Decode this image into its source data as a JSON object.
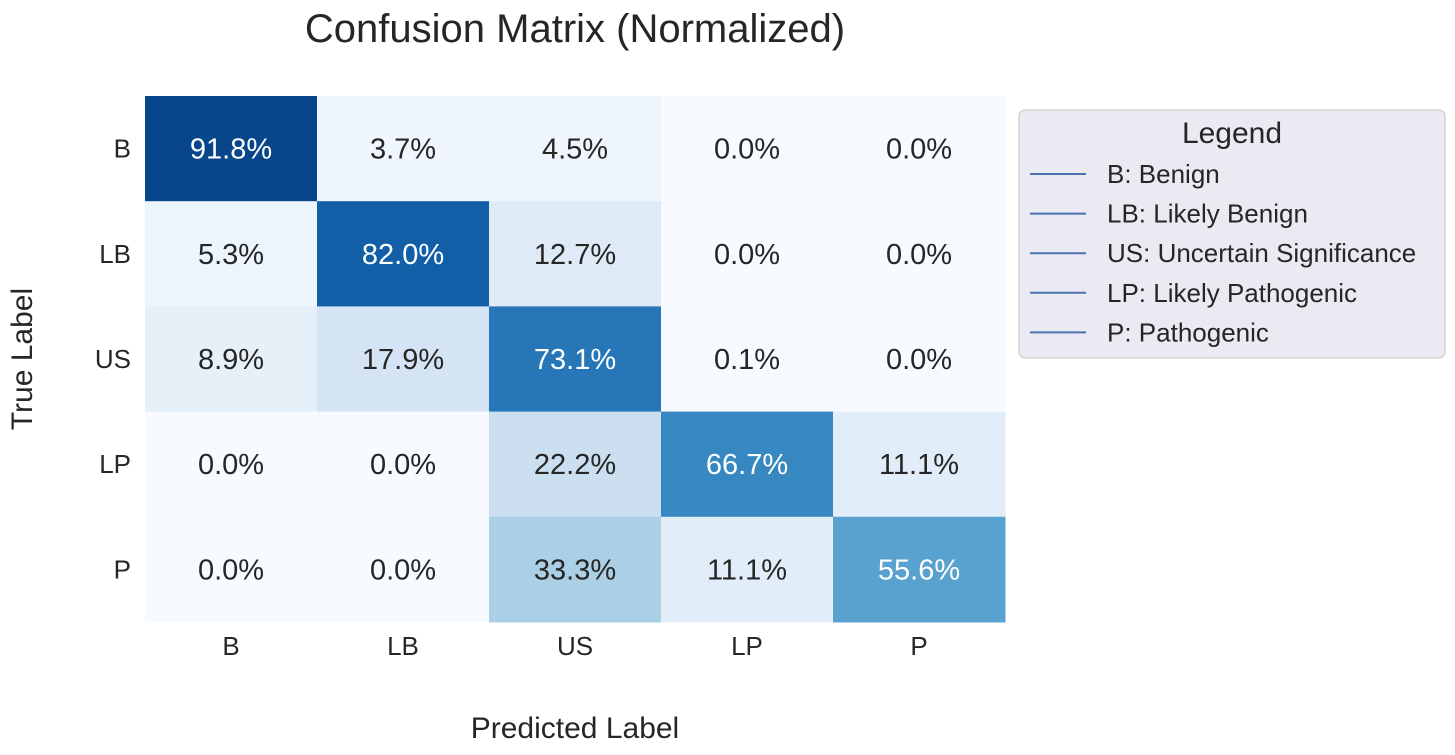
{
  "chart_data": {
    "type": "heatmap",
    "title": "Confusion Matrix (Normalized)",
    "xlabel": "Predicted Label",
    "ylabel": "True Label",
    "x_categories": [
      "B",
      "LB",
      "US",
      "LP",
      "P"
    ],
    "y_categories": [
      "B",
      "LB",
      "US",
      "LP",
      "P"
    ],
    "values": [
      [
        91.8,
        3.7,
        4.5,
        0.0,
        0.0
      ],
      [
        5.3,
        82.0,
        12.7,
        0.0,
        0.0
      ],
      [
        8.9,
        17.9,
        73.1,
        0.1,
        0.0
      ],
      [
        0.0,
        0.0,
        22.2,
        66.7,
        11.1
      ],
      [
        0.0,
        0.0,
        33.3,
        11.1,
        55.6
      ]
    ],
    "cell_labels": [
      [
        "91.8%",
        "3.7%",
        "4.5%",
        "0.0%",
        "0.0%"
      ],
      [
        "5.3%",
        "82.0%",
        "12.7%",
        "0.0%",
        "0.0%"
      ],
      [
        "8.9%",
        "17.9%",
        "73.1%",
        "0.1%",
        "0.0%"
      ],
      [
        "0.0%",
        "0.0%",
        "22.2%",
        "66.7%",
        "11.1%"
      ],
      [
        "0.0%",
        "0.0%",
        "33.3%",
        "11.1%",
        "55.6%"
      ]
    ],
    "value_range": [
      0,
      100
    ],
    "colormap": "Blues",
    "colorbar": false,
    "legend": {
      "title": "Legend",
      "placement": "outside-right-top",
      "line_color": "#4c72b0",
      "entries": [
        "B: Benign",
        "LB: Likely Benign",
        "US: Uncertain Significance",
        "LP: Likely Pathogenic",
        "P: Pathogenic"
      ]
    }
  }
}
